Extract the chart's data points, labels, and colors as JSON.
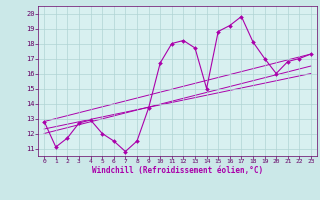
{
  "background_color": "#cbe8e8",
  "plot_bg_color": "#d8f0f0",
  "line_color": "#aa00aa",
  "grid_color": "#b0d4d4",
  "xlabel": "Windchill (Refroidissement éolien,°C)",
  "xlim": [
    -0.5,
    23.5
  ],
  "ylim": [
    10.5,
    20.5
  ],
  "yticks": [
    11,
    12,
    13,
    14,
    15,
    16,
    17,
    18,
    19,
    20
  ],
  "xticks": [
    0,
    1,
    2,
    3,
    4,
    5,
    6,
    7,
    8,
    9,
    10,
    11,
    12,
    13,
    14,
    15,
    16,
    17,
    18,
    19,
    20,
    21,
    22,
    23
  ],
  "main_x": [
    0,
    1,
    2,
    3,
    4,
    5,
    6,
    7,
    8,
    9,
    10,
    11,
    12,
    13,
    14,
    15,
    16,
    17,
    18,
    19,
    20,
    21,
    22,
    23
  ],
  "main_y": [
    12.8,
    11.1,
    11.7,
    12.7,
    12.9,
    12.0,
    11.5,
    10.8,
    11.5,
    13.7,
    16.7,
    18.0,
    18.2,
    17.7,
    15.0,
    18.8,
    19.2,
    19.8,
    18.1,
    17.0,
    16.0,
    16.8,
    17.0,
    17.3
  ],
  "trend_lines": [
    {
      "x": [
        0,
        23
      ],
      "y": [
        12.8,
        17.3
      ]
    },
    {
      "x": [
        0,
        23
      ],
      "y": [
        12.3,
        16.0
      ]
    },
    {
      "x": [
        0,
        23
      ],
      "y": [
        12.0,
        16.5
      ]
    }
  ],
  "title_color": "#660066",
  "tick_color": "#660066",
  "spine_color": "#660066"
}
